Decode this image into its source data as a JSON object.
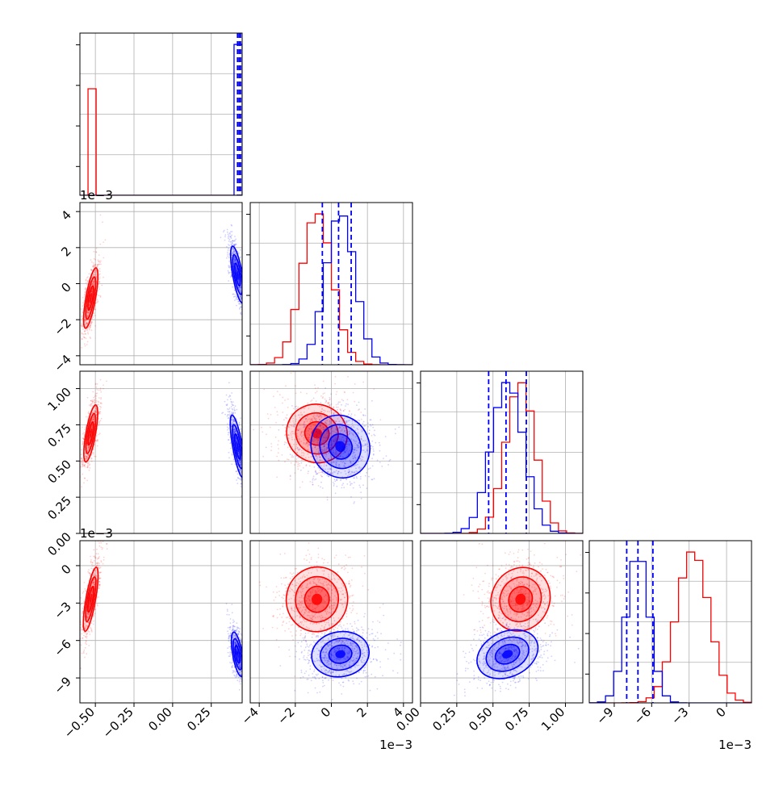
{
  "colors": {
    "red": "#ff0000",
    "blue": "#0000ff",
    "grid": "#b0b0b0"
  },
  "chart_data": {
    "type": "corner",
    "offset_text": "1e−3",
    "series": [
      {
        "name": "",
        "color": "#ff0000",
        "p0": {
          "center": -0.53,
          "sigma": 0.004
        },
        "p1": {
          "center": -0.8,
          "sigma": 0.85
        },
        "p2": {
          "center": 0.69,
          "sigma": 0.1
        },
        "p3": {
          "center": -2.7,
          "sigma": 1.3
        }
      },
      {
        "name": "",
        "color": "#0000ff",
        "p0": {
          "center": 0.42,
          "sigma": 0.006
        },
        "p1": {
          "center": 0.5,
          "sigma": 0.8
        },
        "p2": {
          "center": 0.6,
          "sigma": 0.11
        },
        "p3": {
          "center": -7.1,
          "sigma": 0.9
        }
      }
    ],
    "quantile_lines": {
      "color": "#0000ff",
      "style": "dashed",
      "p0": [
        0.42,
        0.43,
        0.44
      ],
      "p1": [
        -0.5,
        0.4,
        1.1
      ],
      "p2": [
        0.47,
        0.59,
        0.73
      ],
      "p3": [
        -8.0,
        -7.1,
        -5.9
      ]
    },
    "axes": [
      {
        "range": [
          -0.6,
          0.45
        ],
        "ticks": [
          "-0.50",
          "-0.25",
          "0.00",
          "0.25"
        ],
        "tick_values": [
          -0.5,
          -0.25,
          0.0,
          0.25
        ],
        "offset": ""
      },
      {
        "range": [
          -4.5,
          4.5
        ],
        "ticks": [
          "-4",
          "-2",
          "0",
          "2",
          "4"
        ],
        "tick_values": [
          -4,
          -2,
          0,
          2,
          4
        ],
        "offset": "1e−3"
      },
      {
        "range": [
          0.0,
          1.12
        ],
        "ticks": [
          "0.00",
          "0.25",
          "0.50",
          "0.75",
          "1.00"
        ],
        "tick_values": [
          0.0,
          0.25,
          0.5,
          0.75,
          1.0
        ],
        "offset": ""
      },
      {
        "range": [
          -11,
          2
        ],
        "ticks": [
          "-9",
          "-6",
          "-3",
          "0"
        ],
        "tick_values": [
          -9,
          -6,
          -3,
          0
        ],
        "offset": "1e−3"
      }
    ],
    "grid": true
  }
}
